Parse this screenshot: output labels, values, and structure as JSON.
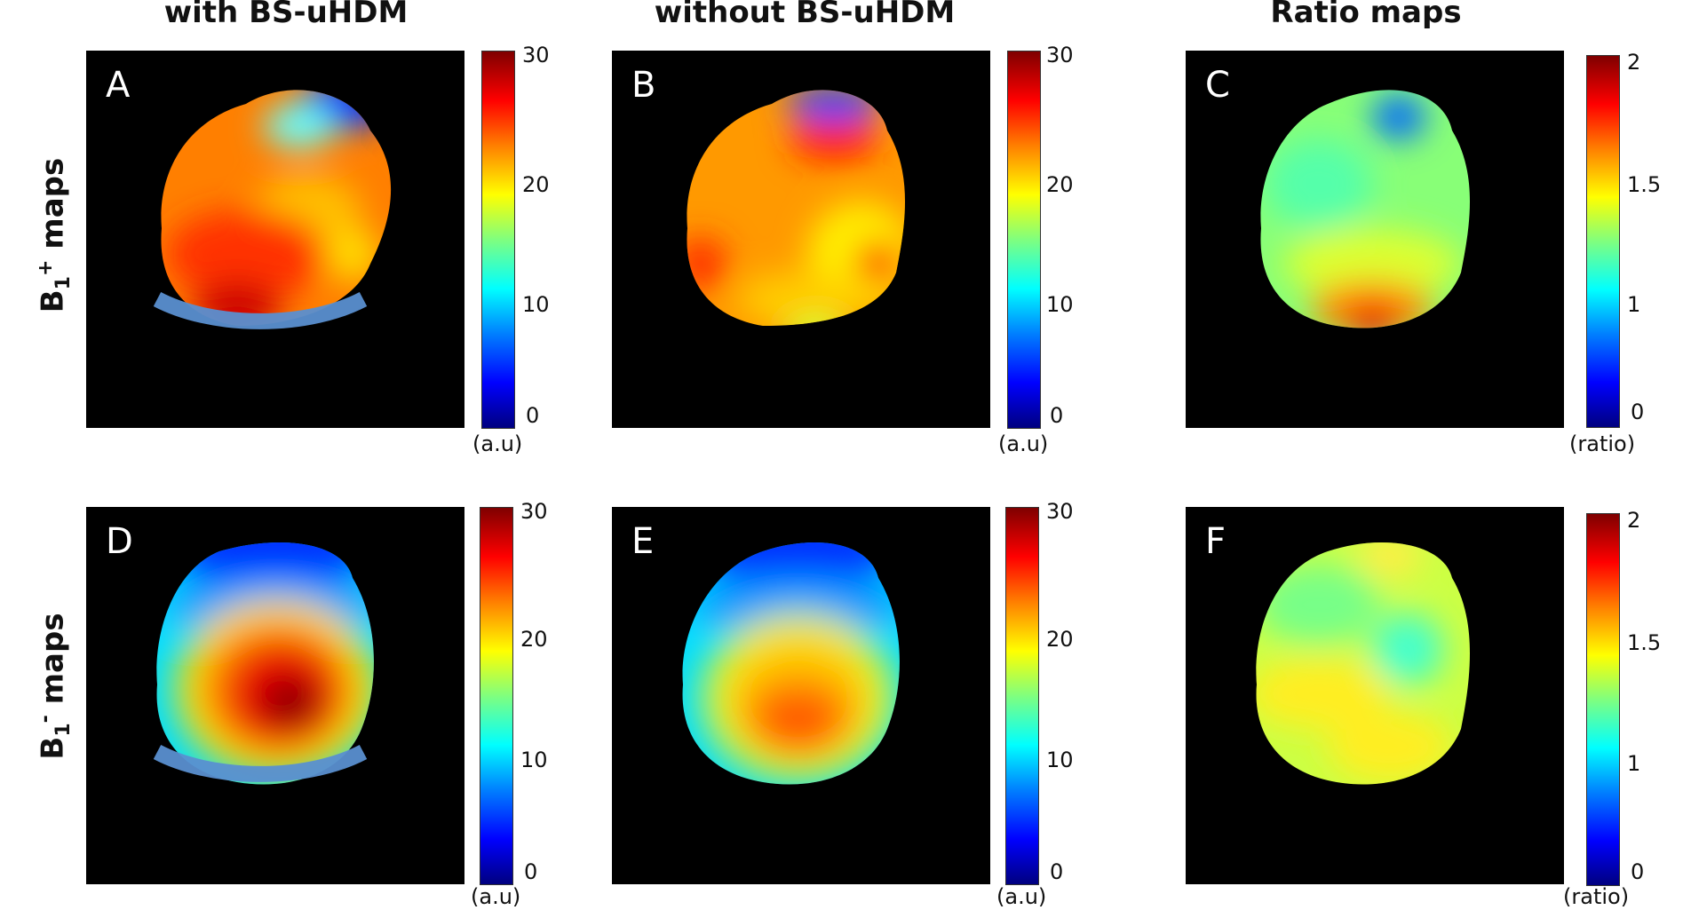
{
  "columns": [
    {
      "title": "with BS-uHDM"
    },
    {
      "title": "without BS-uHDM"
    },
    {
      "title": "Ratio maps"
    }
  ],
  "rows": [
    {
      "label_main": "B",
      "label_sub": "1",
      "label_sup": "+",
      "label_rest": " maps"
    },
    {
      "label_main": "B",
      "label_sub": "1",
      "label_sup": "-",
      "label_rest": " maps"
    }
  ],
  "panels": [
    {
      "letter": "A",
      "has_coil": true,
      "colorbar": {
        "ticks": [
          "30",
          "20",
          "10",
          "0"
        ],
        "unit": "(a.u)"
      }
    },
    {
      "letter": "B",
      "has_coil": false,
      "colorbar": {
        "ticks": [
          "30",
          "20",
          "10",
          "0"
        ],
        "unit": "(a.u)"
      }
    },
    {
      "letter": "C",
      "has_coil": false,
      "colorbar": {
        "ticks": [
          "2",
          "1.5",
          "1",
          "0"
        ],
        "unit": "(ratio)"
      }
    },
    {
      "letter": "D",
      "has_coil": true,
      "colorbar": {
        "ticks": [
          "30",
          "20",
          "10",
          "0"
        ],
        "unit": "(a.u)"
      }
    },
    {
      "letter": "E",
      "has_coil": false,
      "colorbar": {
        "ticks": [
          "30",
          "20",
          "10",
          "0"
        ],
        "unit": "(a.u)"
      }
    },
    {
      "letter": "F",
      "has_coil": false,
      "colorbar": {
        "ticks": [
          "2",
          "1.5",
          "1",
          "0"
        ],
        "unit": "(ratio)"
      }
    }
  ],
  "colormap": [
    "#00007f",
    "#0000ff",
    "#007fff",
    "#00ffff",
    "#7fff7f",
    "#ffff00",
    "#ff7f00",
    "#ff0000",
    "#7f0000"
  ]
}
